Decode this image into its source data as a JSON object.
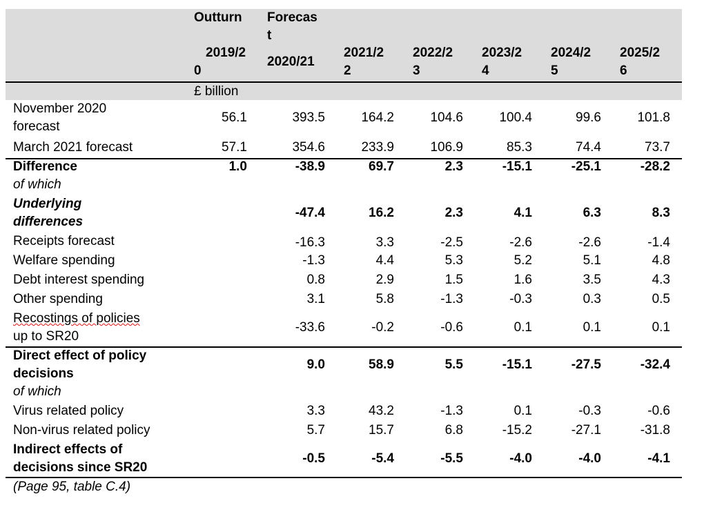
{
  "header": {
    "outturn_label": "Outturn",
    "forecast_label_line1": "Forecas",
    "forecast_label_line2": "t",
    "years": [
      {
        "line1": "2019/2",
        "line2": "0"
      },
      {
        "line1": "2020/21",
        "line2": ""
      },
      {
        "line1": "2021/2",
        "line2": "2"
      },
      {
        "line1": "2022/2",
        "line2": "3"
      },
      {
        "line1": "2023/2",
        "line2": "4"
      },
      {
        "line1": "2024/2",
        "line2": "5"
      },
      {
        "line1": "2025/2",
        "line2": "6"
      }
    ],
    "unit": "£ billion"
  },
  "rows": [
    {
      "label1": "November 2020",
      "label2": "forecast",
      "values": [
        "56.1",
        "393.5",
        "164.2",
        "104.6",
        "100.4",
        "99.6",
        "101.8"
      ]
    },
    {
      "label1": "March 2021 forecast",
      "label2": "",
      "values": [
        "57.1",
        "354.6",
        "233.9",
        "106.9",
        "85.3",
        "74.4",
        "73.7"
      ]
    },
    {
      "label1": "Difference",
      "label2": "of which",
      "values": [
        "1.0",
        "-38.9",
        "69.7",
        "2.3",
        "-15.1",
        "-25.1",
        "-28.2"
      ]
    },
    {
      "label1": "Underlying",
      "label2": "differences",
      "values": [
        "",
        "-47.4",
        "16.2",
        "2.3",
        "4.1",
        "6.3",
        "8.3"
      ]
    },
    {
      "label1": "Receipts forecast",
      "label2": "",
      "values": [
        "",
        "-16.3",
        "3.3",
        "-2.5",
        "-2.6",
        "-2.6",
        "-1.4"
      ]
    },
    {
      "label1": "Welfare spending",
      "label2": "",
      "values": [
        "",
        "-1.3",
        "4.4",
        "5.3",
        "5.2",
        "5.1",
        "4.8"
      ]
    },
    {
      "label1": "Debt interest spending",
      "label2": "",
      "values": [
        "",
        "0.8",
        "2.9",
        "1.5",
        "1.6",
        "3.5",
        "4.3"
      ]
    },
    {
      "label1": "Other spending",
      "label2": "",
      "values": [
        "",
        "3.1",
        "5.8",
        "-1.3",
        "-0.3",
        "0.3",
        "0.5"
      ]
    },
    {
      "label1": "Recostings of policies",
      "label2": "up to SR20",
      "values": [
        "",
        "-33.6",
        "-0.2",
        "-0.6",
        "0.1",
        "0.1",
        "0.1"
      ]
    },
    {
      "label1": "Direct effect of policy",
      "label2": "decisions",
      "label3": "of which",
      "values": [
        "",
        "9.0",
        "58.9",
        "5.5",
        "-15.1",
        "-27.5",
        "-32.4"
      ]
    },
    {
      "label1": "Virus related policy",
      "label2": "",
      "values": [
        "",
        "3.3",
        "43.2",
        "-1.3",
        "0.1",
        "-0.3",
        "-0.6"
      ]
    },
    {
      "label1": "Non-virus related policy",
      "label2": "",
      "values": [
        "",
        "5.7",
        "15.7",
        "6.8",
        "-15.2",
        "-27.1",
        "-31.8"
      ]
    },
    {
      "label1": "Indirect effects of",
      "label2": "decisions since SR20",
      "values": [
        "",
        "-0.5",
        "-5.4",
        "-5.5",
        "-4.0",
        "-4.0",
        "-4.1"
      ]
    }
  ],
  "caption": "(Page 95, table C.4)"
}
